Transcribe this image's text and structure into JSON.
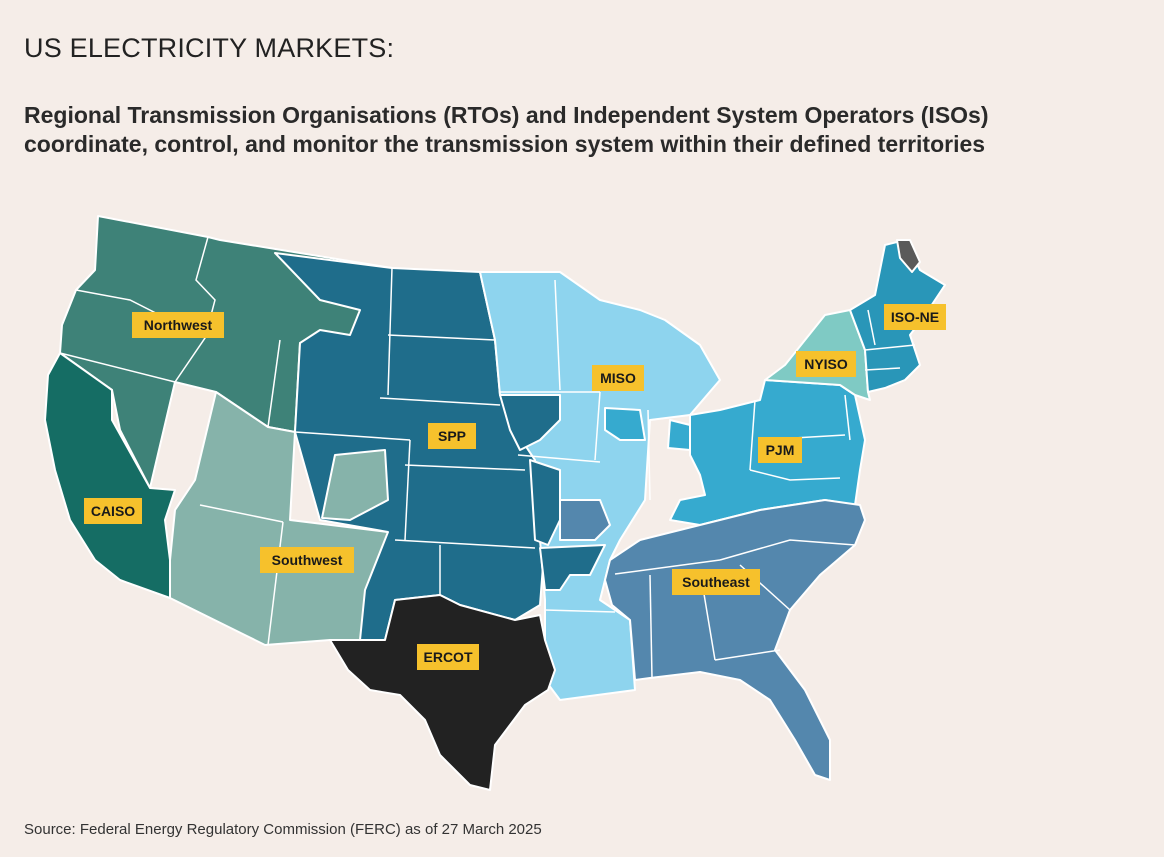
{
  "header": {
    "title": "US ELECTRICITY MARKETS:",
    "subtitle": "Regional Transmission Organisations (RTOs) and Independent System Operators (ISOs) coordinate, control, and monitor the transmission system within their defined territories"
  },
  "map": {
    "regions": [
      {
        "id": "northwest",
        "label": "Northwest",
        "color": "#3e8278"
      },
      {
        "id": "caiso",
        "label": "CAISO",
        "color": "#156d64"
      },
      {
        "id": "southwest",
        "label": "Southwest",
        "color": "#86b3aa"
      },
      {
        "id": "spp",
        "label": "SPP",
        "color": "#1f6d8b"
      },
      {
        "id": "miso",
        "label": "MISO",
        "color": "#8ed4ee"
      },
      {
        "id": "pjm",
        "label": "PJM",
        "color": "#36aacf"
      },
      {
        "id": "nyiso",
        "label": "NYISO",
        "color": "#7fcac4"
      },
      {
        "id": "isone",
        "label": "ISO-NE",
        "color": "#2996b8"
      },
      {
        "id": "southeast",
        "label": "Southeast",
        "color": "#5487ad"
      },
      {
        "id": "ercot",
        "label": "ERCOT",
        "color": "#222222"
      }
    ],
    "label_color": "#f6c12c",
    "background": "#f5ede8"
  },
  "footer": {
    "source": "Source: Federal Energy Regulatory Commission (FERC) as of 27 March 2025"
  }
}
